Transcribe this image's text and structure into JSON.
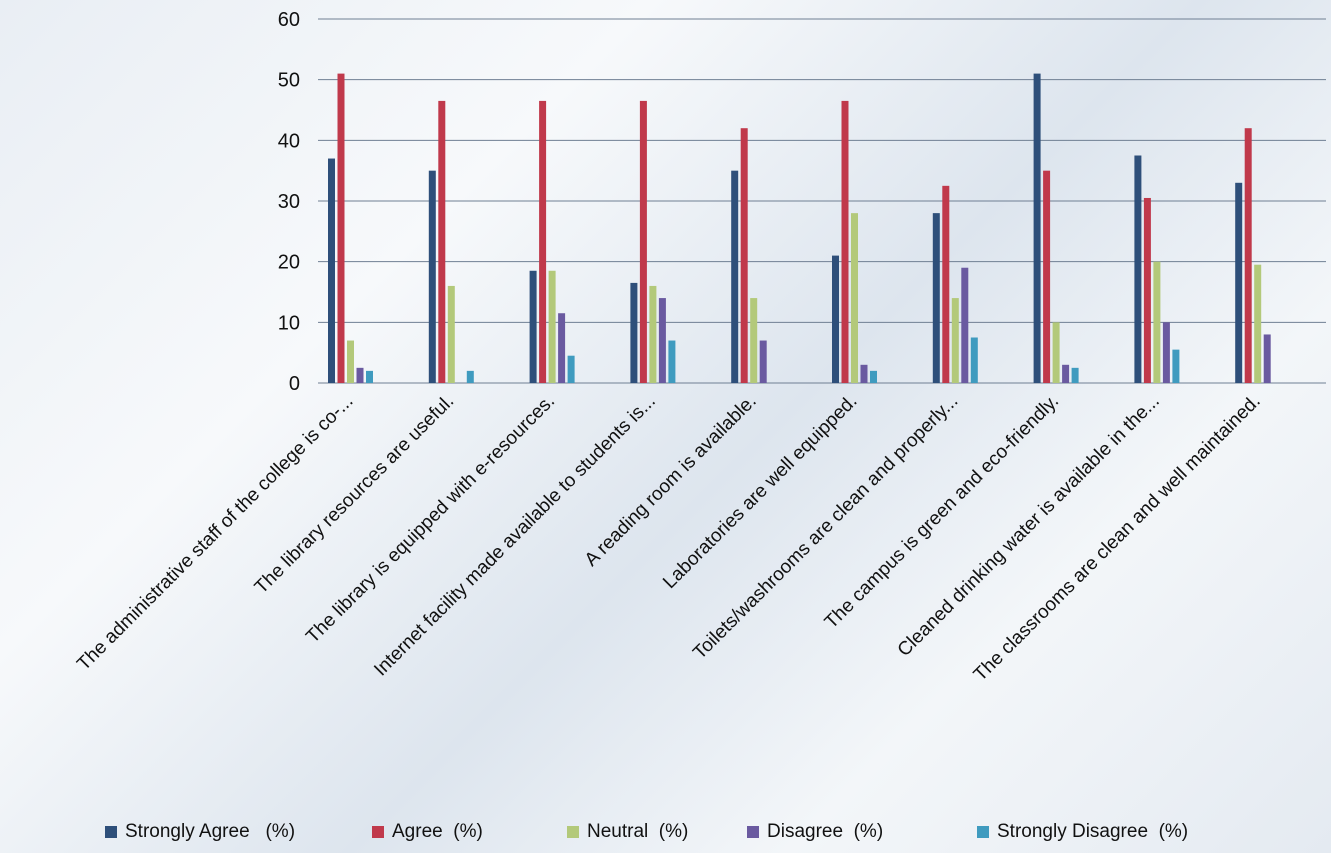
{
  "chart_data": {
    "type": "bar",
    "title": "",
    "xlabel": "",
    "ylabel": "",
    "ylim": [
      0,
      60
    ],
    "yticks": [
      0,
      10,
      20,
      30,
      40,
      50,
      60
    ],
    "grid": true,
    "legend_position": "bottom",
    "categories": [
      "The administrative staff of the college is co-...",
      "The library resources are useful.",
      "The library is equipped with e-resources.",
      "Internet facility made available to students is...",
      "A reading room is available.",
      "Laboratories are well equipped.",
      "Toilets/washrooms are clean and properly...",
      "The campus is green and eco-friendly.",
      "Cleaned drinking water is available in the...",
      "The classrooms are clean and well maintained."
    ],
    "series": [
      {
        "name": "Strongly Agree   (%)",
        "color": "#2e4f7a",
        "values": [
          37,
          35,
          18.5,
          16.5,
          35,
          21,
          28,
          51,
          37.5,
          33
        ]
      },
      {
        "name": "Agree  (%)",
        "color": "#c0394b",
        "values": [
          51,
          46.5,
          46.5,
          46.5,
          42,
          46.5,
          32.5,
          35,
          30.5,
          42
        ]
      },
      {
        "name": "Neutral  (%)",
        "color": "#b3c97a",
        "values": [
          7,
          16,
          18.5,
          16,
          14,
          28,
          14,
          10,
          20,
          19.5
        ]
      },
      {
        "name": "Disagree  (%)",
        "color": "#6a5aa0",
        "values": [
          2.5,
          0,
          11.5,
          14,
          7,
          3,
          19,
          3,
          10,
          8
        ]
      },
      {
        "name": "Strongly Disagree  (%)",
        "color": "#3f9bbf",
        "values": [
          2,
          2,
          4.5,
          7,
          0,
          2,
          7.5,
          2.5,
          5.5,
          0
        ]
      }
    ]
  }
}
